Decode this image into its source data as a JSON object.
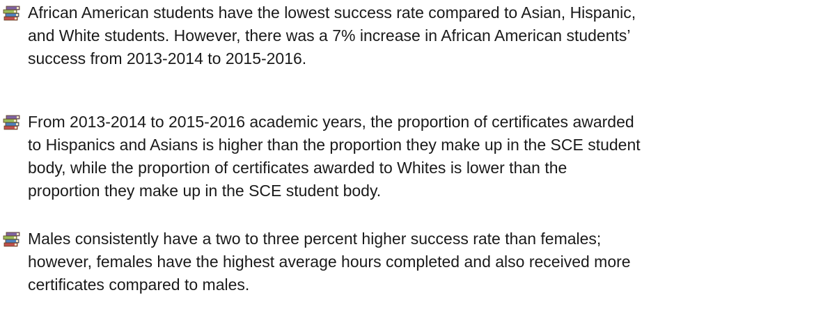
{
  "bullets": [
    {
      "lines": [
        "African American students have the lowest success rate compared to Asian, Hispanic,",
        "and White students. However, there was a 7% increase in African American students’",
        "success from 2013-2014 to 2015-2016."
      ]
    },
    {
      "lines": [
        "From 2013-2014 to 2015-2016 academic years, the proportion of certificates awarded",
        "to Hispanics and Asians is higher than the proportion they make up in the SCE student",
        "body, while the proportion of certificates awarded to Whites is lower than the",
        "proportion they make up in the SCE student body."
      ]
    },
    {
      "lines": [
        "Males consistently have a two to three percent higher success rate than females;",
        "however, females have the highest average hours completed and also received more",
        "certificates compared to males."
      ]
    }
  ]
}
